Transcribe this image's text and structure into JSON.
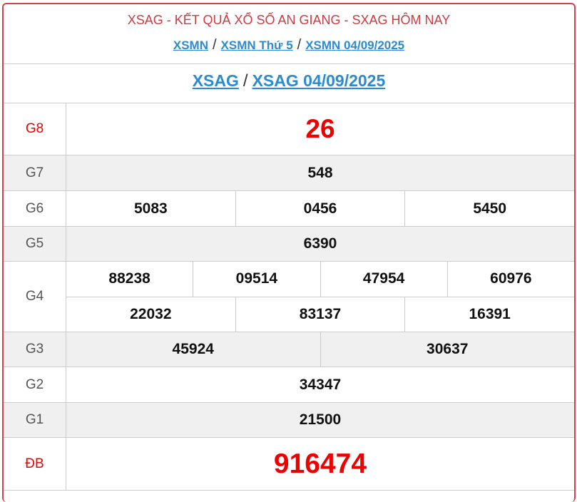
{
  "header": {
    "title": "XSAG - KẾT QUẢ XỔ SỐ AN GIANG - SXAG HÔM NAY",
    "links": [
      "XSMN",
      "XSMN Thứ 5",
      "XSMN 04/09/2025"
    ],
    "separator": "/"
  },
  "subheader": {
    "links": [
      "XSAG",
      "XSAG 04/09/2025"
    ]
  },
  "prizes": [
    {
      "label": "G8",
      "numbers": [
        [
          "26"
        ]
      ]
    },
    {
      "label": "G7",
      "numbers": [
        [
          "548"
        ]
      ]
    },
    {
      "label": "G6",
      "numbers": [
        [
          "5083",
          "0456",
          "5450"
        ]
      ]
    },
    {
      "label": "G5",
      "numbers": [
        [
          "6390"
        ]
      ]
    },
    {
      "label": "G4",
      "numbers": [
        [
          "88238",
          "09514",
          "47954",
          "60976"
        ],
        [
          "22032",
          "83137",
          "16391"
        ]
      ]
    },
    {
      "label": "G3",
      "numbers": [
        [
          "45924",
          "30637"
        ]
      ]
    },
    {
      "label": "G2",
      "numbers": [
        [
          "34347"
        ]
      ]
    },
    {
      "label": "G1",
      "numbers": [
        [
          "21500"
        ]
      ]
    },
    {
      "label": "ĐB",
      "numbers": [
        [
          "916474"
        ]
      ]
    }
  ],
  "colors": {
    "accent": "#d0414f",
    "link": "#2a8bd0",
    "highlight": "#ee0000",
    "alt_row": "#f0f0f0"
  }
}
